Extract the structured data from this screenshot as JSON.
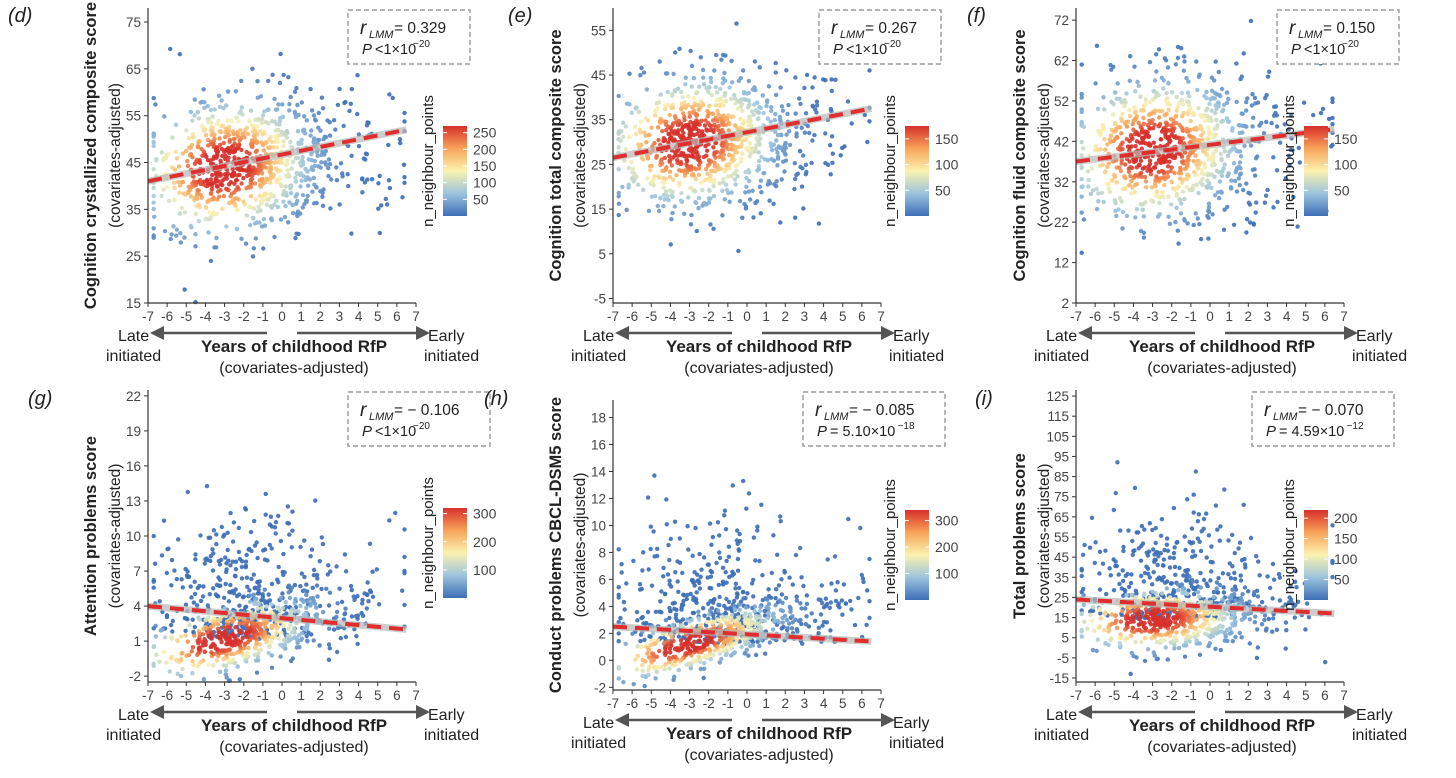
{
  "colorbar_title": "n_neighbour_points",
  "arrow_left_label": [
    "Late",
    "initiated"
  ],
  "arrow_right_label": [
    "Early",
    "initiated"
  ],
  "x_title": "Years of childhood RfP",
  "x_subtitle": "(covariates-adjusted)",
  "colors": {
    "low": "#3d6fb6",
    "mid": "#fbf2b0",
    "high": "#d7302b",
    "fit": "#e02d2d",
    "ci": "#b8b8b8",
    "box": "#9a9a9a"
  },
  "chart_data": [
    {
      "panel": "(d)",
      "type": "scatter",
      "ylabel": "Cognition crystallized composite score",
      "ysub": "(covariates-adjusted)",
      "xlim": [
        -7,
        7
      ],
      "xticks": [
        "-7",
        "-6",
        "-5",
        "-4",
        "-3",
        "-2",
        "-1",
        "0",
        "1",
        "2",
        "3",
        "4",
        "5",
        "6",
        "7"
      ],
      "ylim": [
        15,
        78
      ],
      "yticks": [
        15,
        25,
        35,
        45,
        55,
        65,
        75
      ],
      "stat": {
        "r_text": "= 0.329",
        "p_text": "<1×10",
        "p_exp": "−20"
      },
      "fit_line": {
        "x": [
          -7,
          6.5
        ],
        "y": [
          41,
          52
        ]
      },
      "cloud": {
        "cx": -3,
        "cy": 44,
        "sx": 2.3,
        "sy": 7.5,
        "n": 900,
        "skew_x": 0.55,
        "tail": 0.08
      },
      "colorbar": {
        "ticks": [
          50,
          100,
          150,
          200,
          250
        ],
        "max": 270
      }
    },
    {
      "panel": "(e)",
      "type": "scatter",
      "ylabel": "Cognition total composite score",
      "ysub": "(covariates-adjusted)",
      "xlim": [
        -7,
        7
      ],
      "xticks": [
        "-7",
        "-6",
        "-5",
        "-4",
        "-3",
        "-2",
        "-1",
        "0",
        "1",
        "2",
        "3",
        "4",
        "5",
        "6",
        "7"
      ],
      "ylim": [
        -6,
        60
      ],
      "yticks": [
        -5,
        5,
        15,
        25,
        35,
        45,
        55
      ],
      "stat": {
        "r_text": "= 0.267",
        "p_text": "<1×10",
        "p_exp": "−20"
      },
      "fit_line": {
        "x": [
          -7,
          6.5
        ],
        "y": [
          26.5,
          37.5
        ]
      },
      "cloud": {
        "cx": -3,
        "cy": 30,
        "sx": 2.3,
        "sy": 7.5,
        "n": 900,
        "skew_x": 0.55,
        "tail": 0.1
      },
      "colorbar": {
        "ticks": [
          50,
          100,
          150
        ],
        "max": 175
      }
    },
    {
      "panel": "(f)",
      "type": "scatter",
      "ylabel": "Cognition fluid composite score",
      "ysub": "(covariates-adjusted)",
      "xlim": [
        -7,
        7
      ],
      "xticks": [
        "-7",
        "-6",
        "-5",
        "-4",
        "-3",
        "-2",
        "-1",
        "0",
        "1",
        "2",
        "3",
        "4",
        "5",
        "6",
        "7"
      ],
      "ylim": [
        2,
        75
      ],
      "yticks": [
        2,
        12,
        22,
        32,
        42,
        52,
        62,
        72
      ],
      "stat": {
        "r_text": "= 0.150",
        "p_text": "<1×10",
        "p_exp": "−20"
      },
      "fit_line": {
        "x": [
          -7,
          6.5
        ],
        "y": [
          37,
          45
        ]
      },
      "cloud": {
        "cx": -3,
        "cy": 40,
        "sx": 2.3,
        "sy": 9,
        "n": 900,
        "skew_x": 0.55,
        "tail": 0.1
      },
      "colorbar": {
        "ticks": [
          50,
          100,
          150
        ],
        "max": 175
      }
    },
    {
      "panel": "(g)",
      "type": "scatter",
      "ylabel": "Attention problems score",
      "ysub": "(covariates-adjusted)",
      "xlim": [
        -7,
        7
      ],
      "xticks": [
        "-7",
        "-6",
        "-5",
        "-4",
        "-3",
        "-2",
        "-1",
        "0",
        "1",
        "2",
        "3",
        "4",
        "5",
        "6",
        "7"
      ],
      "ylim": [
        -2.5,
        22.5
      ],
      "yticks": [
        -2,
        1,
        4,
        7,
        10,
        13,
        16,
        19,
        22
      ],
      "stat": {
        "r_text": "= − 0.106",
        "p_text": "<1×10",
        "p_exp": "−20"
      },
      "fit_line": {
        "x": [
          -7,
          6.5
        ],
        "y": [
          4,
          2
        ]
      },
      "cloud": {
        "cx": -3,
        "cy": 1.2,
        "sx": 2.3,
        "sy": 1.5,
        "n": 900,
        "skew_x": 0.55,
        "tail": 0.45,
        "tail_sy": 5
      },
      "colorbar": {
        "ticks": [
          100,
          200,
          300
        ],
        "max": 320
      }
    },
    {
      "panel": "(h)",
      "type": "scatter",
      "ylabel": "Conduct problems CBCL-DSM5 score",
      "ysub": "(covariates-adjusted)",
      "xlim": [
        -7,
        7
      ],
      "xticks": [
        "-7",
        "-6",
        "-5",
        "-4",
        "-3",
        "-2",
        "-1",
        "0",
        "1",
        "2",
        "3",
        "4",
        "5",
        "6",
        "7"
      ],
      "ylim": [
        -2.2,
        19.3
      ],
      "yticks": [
        -2,
        0,
        2,
        4,
        6,
        8,
        10,
        12,
        14,
        16,
        18
      ],
      "stat": {
        "r_text": "= − 0.085",
        "p_text": "= 5.10×10",
        "p_exp": "−18"
      },
      "fit_line": {
        "x": [
          -7,
          6.5
        ],
        "y": [
          2.5,
          1.4
        ]
      },
      "cloud": {
        "cx": -3,
        "cy": 1.2,
        "sx": 2.3,
        "sy": 1.0,
        "n": 900,
        "skew_x": 0.55,
        "tail": 0.45,
        "tail_sy": 4
      },
      "colorbar": {
        "ticks": [
          100,
          200,
          300
        ],
        "max": 340
      }
    },
    {
      "panel": "(i)",
      "type": "scatter",
      "ylabel": "Total problems score",
      "ysub": "(covariates-adjusted)",
      "xlim": [
        -7,
        7
      ],
      "xticks": [
        "-7",
        "-6",
        "-5",
        "-4",
        "-3",
        "-2",
        "-1",
        "0",
        "1",
        "2",
        "3",
        "4",
        "5",
        "6",
        "7"
      ],
      "ylim": [
        -17,
        128
      ],
      "yticks": [
        -15,
        -5,
        5,
        15,
        25,
        35,
        45,
        55,
        65,
        75,
        85,
        95,
        105,
        115,
        125
      ],
      "stat": {
        "r_text": "= − 0.070",
        "p_text": "= 4.59×10",
        "p_exp": "−12"
      },
      "fit_line": {
        "x": [
          -7,
          6.5
        ],
        "y": [
          24,
          17
        ]
      },
      "cloud": {
        "cx": -3,
        "cy": 14,
        "sx": 2.3,
        "sy": 8,
        "n": 900,
        "skew_x": 0.55,
        "tail": 0.4,
        "tail_sy": 25
      },
      "colorbar": {
        "ticks": [
          50,
          100,
          150,
          200
        ],
        "max": 220
      }
    }
  ]
}
